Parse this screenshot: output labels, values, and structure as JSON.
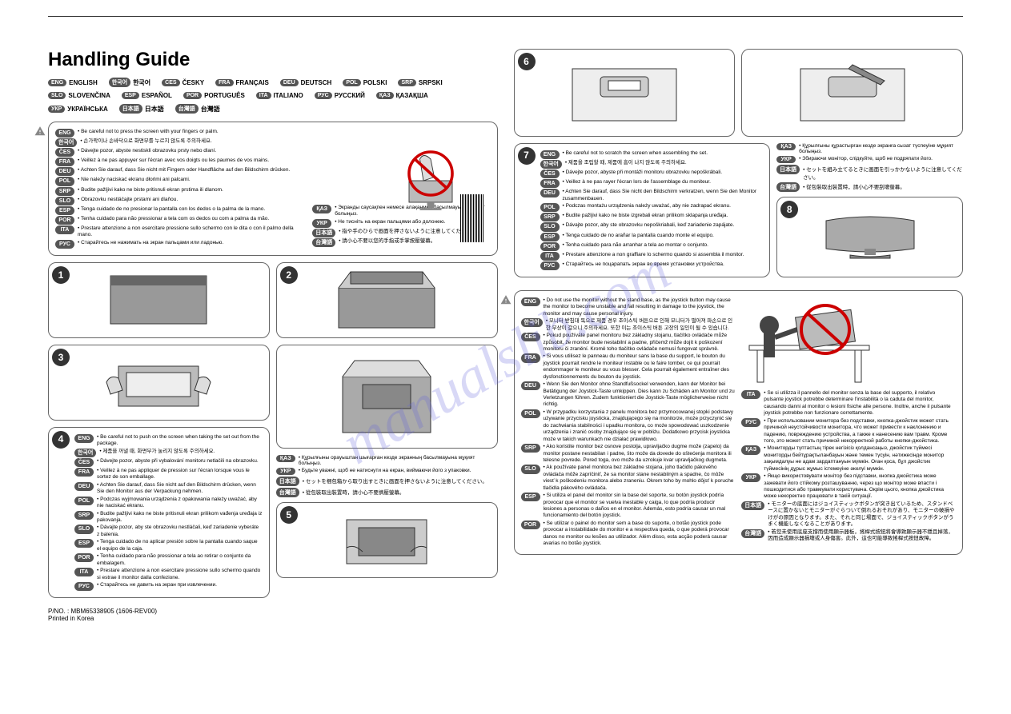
{
  "title": "Handling Guide",
  "languages": [
    {
      "code": "ENG",
      "name": "ENGLISH"
    },
    {
      "code": "한국어",
      "name": "한국어"
    },
    {
      "code": "ČES",
      "name": "ČESKY"
    },
    {
      "code": "FRA",
      "name": "FRANÇAIS"
    },
    {
      "code": "DEU",
      "name": "DEUTSCH"
    },
    {
      "code": "POL",
      "name": "POLSKI"
    },
    {
      "code": "SRP",
      "name": "SRPSKI"
    },
    {
      "code": "SLO",
      "name": "SLOVENČINA"
    },
    {
      "code": "ESP",
      "name": "ESPAÑOL"
    },
    {
      "code": "POR",
      "name": "PORTUGUÊS"
    },
    {
      "code": "ITA",
      "name": "ITALIANO"
    },
    {
      "code": "РУС",
      "name": "РУССКИЙ"
    },
    {
      "code": "ҚАЗ",
      "name": "ҚАЗАҚША"
    },
    {
      "code": "УКР",
      "name": "УКРАЇНСЬКА"
    },
    {
      "code": "日本語",
      "name": "日本語"
    },
    {
      "code": "台灣語",
      "name": "台灣語"
    }
  ],
  "warn1": [
    {
      "code": "ENG",
      "text": "Be careful not to press the screen with your fingers or palm."
    },
    {
      "code": "한국어",
      "text": "손가락이나 손바닥으로 화면부를 누르지 않도록 주의하세요."
    },
    {
      "code": "ČES",
      "text": "Dávejte pozor, abyste nestiskli obrazovku prsty nebo dlaní."
    },
    {
      "code": "FRA",
      "text": "Veillez à ne pas appuyer sur l'écran avec vos doigts ou les paumes de vos mains."
    },
    {
      "code": "DEU",
      "text": "Achten Sie darauf, dass Sie nicht mit Fingern oder Handfläche auf den Bildschirm drücken."
    },
    {
      "code": "POL",
      "text": "Nie należy naciskać ekranu dłońmi ani palcami."
    },
    {
      "code": "SRP",
      "text": "Budite pažljivi kako ne biste pritisnuli ekran prstima ili dlanom."
    },
    {
      "code": "SLO",
      "text": "Obrazovku nestláčajte prstami ani dlaňou."
    },
    {
      "code": "ESP",
      "text": "Tenga cuidado de no presionar la pantalla con los dedos o la palma de la mano."
    },
    {
      "code": "POR",
      "text": "Tenha cuidado para não pressionar a tela com os dedos ou com a palma da mão."
    },
    {
      "code": "ITA",
      "text": "Prestare attenzione a non esercitare pressione sullo schermo con le dita o con il palmo della mano."
    },
    {
      "code": "РУС",
      "text": "Старайтесь не нажимать на экран пальцами или ладонью."
    }
  ],
  "warn1b": [
    {
      "code": "ҚАЗ",
      "text": "Экранды саусақпен немесе алақанмен басылмауына мұқият болыңыз."
    },
    {
      "code": "УКР",
      "text": "Не тисніть на екран пальцями або долонею."
    },
    {
      "code": "日本語",
      "text": "指や手のひらで画面を押さないように注意してください。"
    },
    {
      "code": "台灣語",
      "text": "請小心不要以您的手指或手掌按壓螢幕。"
    }
  ],
  "warn4": [
    {
      "code": "ENG",
      "text": "Be careful not to push on the screen when taking the set out from the package."
    },
    {
      "code": "한국어",
      "text": "제품을 꺼낼 때, 화면부가 눌리지 않도록 주의하세요."
    },
    {
      "code": "ČES",
      "text": "Dávejte pozor, abyste při vybalování monitoru netlačili na obrazovku."
    },
    {
      "code": "FRA",
      "text": "Veillez à ne pas appliquer de pression sur l'écran lorsque vous le sortez de son emballage."
    },
    {
      "code": "DEU",
      "text": "Achten Sie darauf, dass Sie nicht auf den Bildschirm drücken, wenn Sie den Monitor aus der Verpackung nehmen."
    },
    {
      "code": "POL",
      "text": "Podczas wyjmowania urządzenia z opakowania należy uważać, aby nie naciskać ekranu."
    },
    {
      "code": "SRP",
      "text": "Budite pažljivi kako ne biste pritisnuli ekran prilikom vađenja uređaja iz pakovanja."
    },
    {
      "code": "SLO",
      "text": "Dávajte pozor, aby ste obrazovku nestláčali, keď zariadenie vyberáte z balenia."
    },
    {
      "code": "ESP",
      "text": "Tenga cuidado de no aplicar presión sobre la pantalla cuando saque el equipo de la caja."
    },
    {
      "code": "POR",
      "text": "Tenha cuidado para não pressionar a tela ao retirar o conjunto da embalagem."
    },
    {
      "code": "ITA",
      "text": "Prestare attenzione a non esercitare pressione sullo schermo quando si estrae il monitor dalla confezione."
    },
    {
      "code": "РУС",
      "text": "Старайтесь не давить на экран при извлечении."
    }
  ],
  "warn4b": [
    {
      "code": "ҚАЗ",
      "text": "Құрылғыны орауыштан шығарған кезде экранның басылмауына мұқият болыңыз."
    },
    {
      "code": "УКР",
      "text": "Будьте уважні, щоб не натиснути на екран, виймаючи його з упаковки."
    },
    {
      "code": "日本語",
      "text": "セットを梱包箱から取り出すときに画面を押さないように注意してください。"
    },
    {
      "code": "台灣語",
      "text": "從包裝取出裝置時，請小心不要擠壓螢幕。"
    }
  ],
  "warn7": [
    {
      "code": "ENG",
      "text": "Be careful not to scratch the screen when assembling the set."
    },
    {
      "code": "한국어",
      "text": "제품을 조립할 때, 제품에 흠이 나지 않도록 주의하세요."
    },
    {
      "code": "ČES",
      "text": "Dávejte pozor, abyste při montáži monitoru obrazovku nepoškrábali."
    },
    {
      "code": "FRA",
      "text": "Veillez à ne pas rayer l'écran lors de l'assemblage du moniteur."
    },
    {
      "code": "DEU",
      "text": "Achten Sie darauf, dass Sie nicht den Bildschirm verkratzen, wenn Sie den Monitor zusammenbauen."
    },
    {
      "code": "POL",
      "text": "Podczas montażu urządzenia należy uważać, aby nie zadrapać ekranu."
    },
    {
      "code": "SRP",
      "text": "Budite pažljivi kako ne biste izgrebali ekran prilikom sklapanja uređaja."
    },
    {
      "code": "SLO",
      "text": "Dávajte pozor, aby ste obrazovku nepoškriabali, keď zariadenie zapájate."
    },
    {
      "code": "ESP",
      "text": "Tenga cuidado de no arañar la pantalla cuando monte el equipo."
    },
    {
      "code": "POR",
      "text": "Tenha cuidado para não arranhar a tela ao montar o conjunto."
    },
    {
      "code": "ITA",
      "text": "Prestare attenzione a non graffiare lo schermo quando si assembla il monitor."
    },
    {
      "code": "РУС",
      "text": "Старайтесь не поцарапать экран во время установки устройства."
    }
  ],
  "warn7b": [
    {
      "code": "ҚАЗ",
      "text": "Құрылғыны құрастырған кезде экранға сызат түспеуіне мұқият болыңыз."
    },
    {
      "code": "УКР",
      "text": "Збираючи монітор, слідкуйте, щоб не подряпати його."
    },
    {
      "code": "日本語",
      "text": "セットを組み立てるときに画面を引っかかないように注意してください。"
    },
    {
      "code": "台灣語",
      "text": "從包裝取出裝置時，請小心不要刮壞螢幕。"
    }
  ],
  "warn_final_a": [
    {
      "code": "ENG",
      "text": "Do not use the monitor without the stand base, as the joystick button may cause the monitor to become unstable and fall resulting in damage to the joystick, the monitor and may cause personal injury."
    },
    {
      "code": "한국어",
      "text": "모니터 받침대 독으로 제품 경우 조이스틱 버튼으로 인해 모니터가 떨어져 파손으로 인한 부상이 갈으니 주의하세요. 또한 이는 조이스틱 버튼 고장의 일인이 될 수 있습니다."
    },
    {
      "code": "ČES",
      "text": "Pokud používáte panel monitoru bez základny stojanu, tlačítko ovládače může způsobit, že monitor bude nestabilní a padne, přičemž může dojít k poškození monitoru či zranění. Kromě toho tlačítko ovládače nemusí fungovat správně."
    },
    {
      "code": "FRA",
      "text": "Si vous utilisez le panneau du moniteur sans la base du support, le bouton du joystick pourrait rendre le moniteur instable ou le faire tomber, ce qui pourrait endommager le moniteur ou vous blesser. Cela pourrait également entraîner des dysfonctionnements du bouton du joystick."
    },
    {
      "code": "DEU",
      "text": "Wenn Sie den Monitor ohne Standfußsockel verwenden, kann der Monitor bei Betätigung der Joystick-Taste umkippen. Dies kann zu Schäden am Monitor und zu Verletzungen führen. Zudem funktioniert die Joystick-Taste möglicherweise nicht richtig."
    },
    {
      "code": "POL",
      "text": "W przypadku korzystania z panelu monitora bez przymocowanej stopki podstawy używanie przycisku joysticka, znajdującego się na monitorze, może przyczynić się do zachwiania stabilności i upadku monitora, co może spowodować uszkodzenie urządzenia i zranić osoby znajdujące się w pobliżu. Dodatkowo przycisk joysticka może w takich warunkach nie działać prawidłowo."
    },
    {
      "code": "SRP",
      "text": "Ako koristite monitor bez osnove postolja, upravljačko dugme može (zapelo) da monitor postane nestabilan i padne, što može da dovede do oštećenja monitora ili telesne povrede. Pored toga, ovo može da uzrokuje kvar upravljačkog dugmeta."
    },
    {
      "code": "SLO",
      "text": "Ak používate panel monitora bez základne stojana, joho tlačidlo pákového ovládača môže zapríčiniť, že sa monitor stane nestabilným a spadne, čo môže viesť k poškodeniu monitora alebo zraneniu. Okrem toho by mohlo dôjsť k poruche tlačidla pákového ovládača."
    },
    {
      "code": "ESP",
      "text": "Si utiliza el panel del monitor sin la base del soporte, su botón joystick podría provocar que el monitor se vuelva inestable y caiga, lo que podría producir lesiones a personas o daños en el monitor. Además, esto podría causar un mal funcionamiento del botón joystick."
    },
    {
      "code": "POR",
      "text": "Se utilizar o painel do monitor sem a base do suporte, o botão joystick pode provocar a instabilidade do monitor e a respectiva queda, o que poderá provocar danos no monitor ou lesões ao utilizador. Além disso, esta acção poderá causar avarias no botão joystick."
    }
  ],
  "warn_final_b": [
    {
      "code": "ITA",
      "text": "Se si utilizza il pannello del monitor senza la base del supporto, il relativo pulsante joystick potrebbe determinare l'instabilità o la caduta del monitor, causando danni al monitor o lesioni fisiche alle persone. Inoltre, anche il pulsante joystick potrebbe non funzionare correttamente."
    },
    {
      "code": "РУС",
      "text": "При использовании монитора без подставки, кнопка-джойстик может стать причиной неустойчивости монитора, что может привести к наклонению и падению, повреждению устройства, а также к нанесению вам травм. Кроме того, это может стать причиной некорректной работы кнопки-джойстика."
    },
    {
      "code": "ҚАЗ",
      "text": "Мониторды түптастың тірек негізісіз қолдансаңыз, джойстик түймесі мониторды бейтұрақтыланбауын және төмен түсуін, нәтижесінде монитор зақымдалуы не адам зардаптануын мүмкін. Оған қоса, бұл джойстик түймесінің дұрыс жұмыс істемеуіне әкелуі мүмкін."
    },
    {
      "code": "УКР",
      "text": "Якщо використовувати монітор без підставки, кнопка джойстика може зажевати його стійкому розташуванню, через що монітор може впасти і пошкодитися або травмувати користувача. Окрім цього, кнопка джойстика може некоректно працювати в такій ситуації."
    },
    {
      "code": "日本語",
      "text": "モニターの底面にはジョイスティックボタンが突き出ているため、スタンドベースに置かないとモニターがぐらついて倒れるおそれがあり、モニターの破損やけがの原因となります。また、それと同じ場面で、ジョイスティックボタンがうまく機能しなくなることがあります。"
    },
    {
      "code": "台灣語",
      "text": "若您未使用底座支撐而使用顯示器板，搖桿式按鈕將會導致顯示器不穩且掉落，因而造成顯示器損壞或人身傷害。此外，這也可能導致搖桿式按鈕故障。"
    }
  ],
  "footer1": "P/NO. : MBM65338905 (1606-REV00)",
  "footer2": "Printed in Korea",
  "watermark": "manualslib.com",
  "steps": [
    "1",
    "2",
    "3",
    "4",
    "5",
    "6",
    "7",
    "8"
  ]
}
